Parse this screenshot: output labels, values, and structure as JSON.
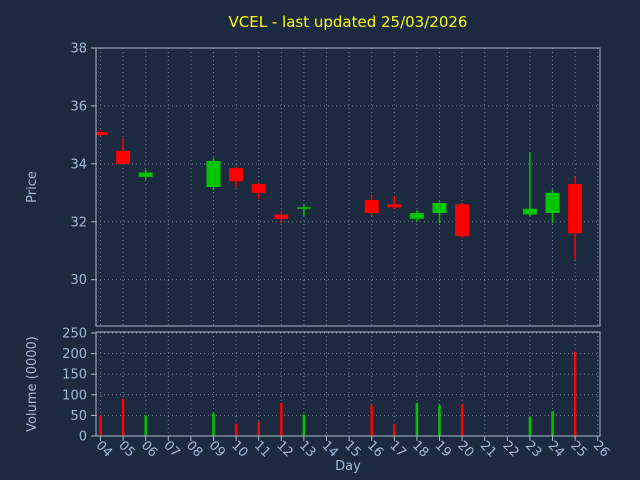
{
  "title": "VCEL - last updated 25/03/2026",
  "colors": {
    "background": "#1b2a3e",
    "title": "#ffff00",
    "axis_text": "#a0b8d8",
    "grid": "#9aa8b8",
    "spine": "#a8b8c8",
    "up": "#00c400",
    "down": "#ff0000"
  },
  "price_axis": {
    "label": "Price",
    "ticks": [
      30,
      32,
      34,
      36,
      38
    ],
    "range": [
      28.4,
      38
    ]
  },
  "volume_axis": {
    "label": "Volume (0000)",
    "ticks": [
      0,
      50,
      100,
      150,
      200,
      250
    ],
    "range": [
      0,
      250
    ]
  },
  "x_axis": {
    "label": "Day",
    "ticks": [
      "04",
      "05",
      "06",
      "07",
      "08",
      "09",
      "10",
      "11",
      "12",
      "13",
      "14",
      "15",
      "16",
      "17",
      "18",
      "19",
      "20",
      "21",
      "22",
      "23",
      "24",
      "25",
      "26"
    ]
  },
  "chart_data": {
    "type": "candlestick",
    "symbol": "VCEL",
    "last_updated": "25/03/2026",
    "legend": "green = close >= open, red = close < open; lower panel is volume in 0000s",
    "series": [
      {
        "day": "04",
        "open": 35.1,
        "high": 35.15,
        "low": 34.95,
        "close": 35.0,
        "volume": 50
      },
      {
        "day": "05",
        "open": 34.45,
        "high": 34.9,
        "low": 33.95,
        "close": 34.0,
        "volume": 90
      },
      {
        "day": "06",
        "open": 33.55,
        "high": 33.8,
        "low": 33.45,
        "close": 33.7,
        "volume": 50
      },
      {
        "day": "09",
        "open": 33.2,
        "high": 34.2,
        "low": 33.1,
        "close": 34.1,
        "volume": 55
      },
      {
        "day": "10",
        "open": 33.85,
        "high": 33.9,
        "low": 33.2,
        "close": 33.4,
        "volume": 30
      },
      {
        "day": "11",
        "open": 33.3,
        "high": 33.35,
        "low": 32.8,
        "close": 33.0,
        "volume": 35
      },
      {
        "day": "12",
        "open": 32.25,
        "high": 32.35,
        "low": 31.95,
        "close": 32.1,
        "volume": 80
      },
      {
        "day": "13",
        "open": 32.45,
        "high": 32.6,
        "low": 32.2,
        "close": 32.5,
        "volume": 52
      },
      {
        "day": "16",
        "open": 32.75,
        "high": 32.95,
        "low": 32.2,
        "close": 32.3,
        "volume": 75
      },
      {
        "day": "17",
        "open": 32.6,
        "high": 32.9,
        "low": 32.45,
        "close": 32.5,
        "volume": 30
      },
      {
        "day": "18",
        "open": 32.1,
        "high": 32.4,
        "low": 32.0,
        "close": 32.3,
        "volume": 80
      },
      {
        "day": "19",
        "open": 32.3,
        "high": 32.7,
        "low": 31.95,
        "close": 32.65,
        "volume": 75
      },
      {
        "day": "20",
        "open": 32.6,
        "high": 32.65,
        "low": 31.45,
        "close": 31.5,
        "volume": 78
      },
      {
        "day": "23",
        "open": 32.25,
        "high": 34.4,
        "low": 32.2,
        "close": 32.45,
        "volume": 46
      },
      {
        "day": "24",
        "open": 32.3,
        "high": 33.1,
        "low": 31.95,
        "close": 33.0,
        "volume": 60
      },
      {
        "day": "25",
        "open": 33.3,
        "high": 33.55,
        "low": 30.7,
        "close": 31.6,
        "volume": 205
      }
    ]
  }
}
